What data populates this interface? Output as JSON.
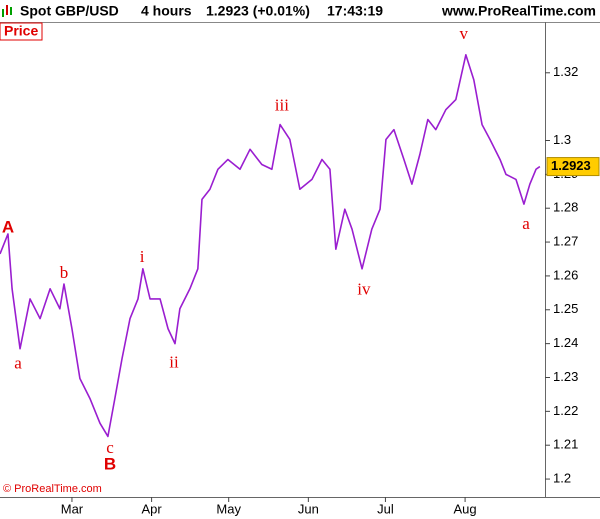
{
  "chart_data": {
    "type": "line",
    "header": {
      "symbol": "Spot GBP/USD",
      "timeframe": "4 hours",
      "quote": "1.2923 (+0.01%)",
      "time": "17:43:19",
      "site": "www.ProRealTime.com"
    },
    "copyright": "© ProRealTime.com",
    "last_value": 1.2923,
    "x": [
      32,
      35.1,
      36.7,
      39.8,
      43.7,
      47.6,
      51.5,
      55.3,
      56.9,
      60,
      63.1,
      67,
      70.9,
      74,
      76.7,
      79.5,
      82.6,
      85.7,
      87.6,
      90.4,
      94.3,
      97.4,
      100.1,
      102,
      105.9,
      109,
      110.6,
      113.7,
      116.8,
      120.7,
      125.4,
      129.3,
      133.9,
      137.8,
      141,
      144.8,
      148.7,
      153.4,
      157.3,
      160.4,
      162.7,
      166.2,
      169,
      172.9,
      176.7,
      179.9,
      182.2,
      185.3,
      189.2,
      192.3,
      195.4,
      198.5,
      201.6,
      205.5,
      209.4,
      213.3,
      216.4,
      219.6,
      222.7,
      226.6,
      228.9,
      232.8,
      235.9,
      238.2,
      240.6,
      242.1
    ],
    "series": [
      {
        "name": "Price",
        "color": "#9a1ed0",
        "values": [
          1.2665,
          1.2724,
          1.2562,
          1.2385,
          1.2532,
          1.2474,
          1.2562,
          1.2503,
          1.2576,
          1.2444,
          1.2297,
          1.2238,
          1.2165,
          1.2126,
          1.2238,
          1.2356,
          1.2474,
          1.2532,
          1.2621,
          1.2532,
          1.2532,
          1.2444,
          1.24,
          1.2503,
          1.2562,
          1.2621,
          1.2826,
          1.2856,
          1.2915,
          1.2944,
          1.2915,
          1.2974,
          1.2929,
          1.2915,
          1.3047,
          1.3003,
          1.2856,
          1.2885,
          1.2944,
          1.2915,
          1.2679,
          1.2797,
          1.2738,
          1.2621,
          1.2738,
          1.2797,
          1.3003,
          1.3032,
          1.2944,
          1.2871,
          1.2959,
          1.3062,
          1.3032,
          1.3091,
          1.3121,
          1.3253,
          1.3179,
          1.3047,
          1.3003,
          1.2944,
          1.29,
          1.2885,
          1.2812,
          1.2871,
          1.2915,
          1.2923
        ]
      }
    ],
    "xlim": [
      32,
      244.1
    ],
    "ylim": [
      1.1947,
      1.335
    ],
    "xticks": [
      {
        "value": 60,
        "label": "Mar"
      },
      {
        "value": 91,
        "label": "Apr"
      },
      {
        "value": 121,
        "label": "May"
      },
      {
        "value": 152,
        "label": "Jun"
      },
      {
        "value": 182,
        "label": "Jul"
      },
      {
        "value": 213,
        "label": "Aug"
      }
    ],
    "yticks": [
      1.2,
      1.21,
      1.22,
      1.23,
      1.24,
      1.25,
      1.26,
      1.27,
      1.28,
      1.29,
      1.3,
      1.32
    ],
    "annotations": [
      {
        "text": "A",
        "x": 35.1,
        "y": 1.2741,
        "bold": true
      },
      {
        "text": "a",
        "x": 39,
        "y": 1.2338,
        "bold": false
      },
      {
        "text": "b",
        "x": 56.9,
        "y": 1.2606,
        "bold": false
      },
      {
        "text": "c",
        "x": 74.8,
        "y": 1.2089,
        "bold": false
      },
      {
        "text": "B",
        "x": 74.8,
        "y": 1.2041,
        "bold": true
      },
      {
        "text": "i",
        "x": 87.3,
        "y": 1.2653,
        "bold": false
      },
      {
        "text": "ii",
        "x": 99.7,
        "y": 1.2341,
        "bold": false
      },
      {
        "text": "iii",
        "x": 141.7,
        "y": 1.31,
        "bold": false
      },
      {
        "text": "iv",
        "x": 173.6,
        "y": 1.2556,
        "bold": false
      },
      {
        "text": "v",
        "x": 212.5,
        "y": 1.3312,
        "bold": false
      },
      {
        "text": "a",
        "x": 236.7,
        "y": 1.275,
        "bold": false
      }
    ]
  }
}
